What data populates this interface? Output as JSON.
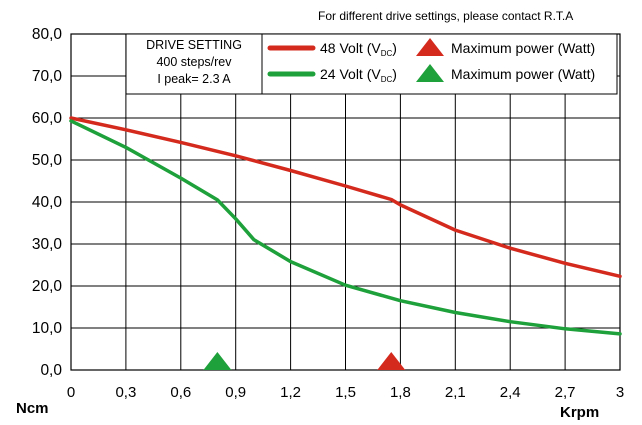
{
  "chart_data": {
    "type": "line",
    "note": "For different drive settings, please contact R.T.A",
    "xlabel": "Krpm",
    "ylabel": "Ncm",
    "xlim": [
      0,
      3
    ],
    "ylim": [
      0,
      80
    ],
    "x_ticks": [
      "0",
      "0,3",
      "0,6",
      "0,9",
      "1,2",
      "1,5",
      "1,8",
      "2,1",
      "2,4",
      "2,7",
      "3"
    ],
    "y_ticks": [
      "0,0",
      "10,0",
      "20,0",
      "30,0",
      "40,0",
      "50,0",
      "60,0",
      "70,0",
      "80,0"
    ],
    "grid": true,
    "drive_setting": {
      "title": "DRIVE SETTING",
      "steps": "400 steps/rev",
      "peak": "I peak= 2.3 A"
    },
    "legend_label_max_power": "Maximum power (Watt)",
    "series": [
      {
        "name": "48 Volt (V",
        "name_sub": "DC",
        "name_end": ")",
        "color": "#d42a1e",
        "points": [
          [
            0,
            60
          ],
          [
            0.3,
            57.2
          ],
          [
            0.6,
            54.2
          ],
          [
            0.9,
            51
          ],
          [
            1.2,
            47.5
          ],
          [
            1.5,
            43.8
          ],
          [
            1.75,
            40.6
          ],
          [
            1.8,
            39.3
          ],
          [
            2.1,
            33.3
          ],
          [
            2.4,
            29
          ],
          [
            2.7,
            25.4
          ],
          [
            3,
            22.3
          ]
        ],
        "max_power_x": 1.75
      },
      {
        "name": "24 Volt (V",
        "name_sub": "DC",
        "name_end": ")",
        "color": "#1ea03a",
        "points": [
          [
            0,
            59.3
          ],
          [
            0.3,
            53
          ],
          [
            0.6,
            45.7
          ],
          [
            0.8,
            40.5
          ],
          [
            0.9,
            36
          ],
          [
            1.0,
            31
          ],
          [
            1.2,
            25.8
          ],
          [
            1.5,
            20.2
          ],
          [
            1.8,
            16.5
          ],
          [
            2.1,
            13.7
          ],
          [
            2.4,
            11.5
          ],
          [
            2.7,
            9.8
          ],
          [
            3,
            8.6
          ]
        ],
        "max_power_x": 0.8
      }
    ]
  }
}
